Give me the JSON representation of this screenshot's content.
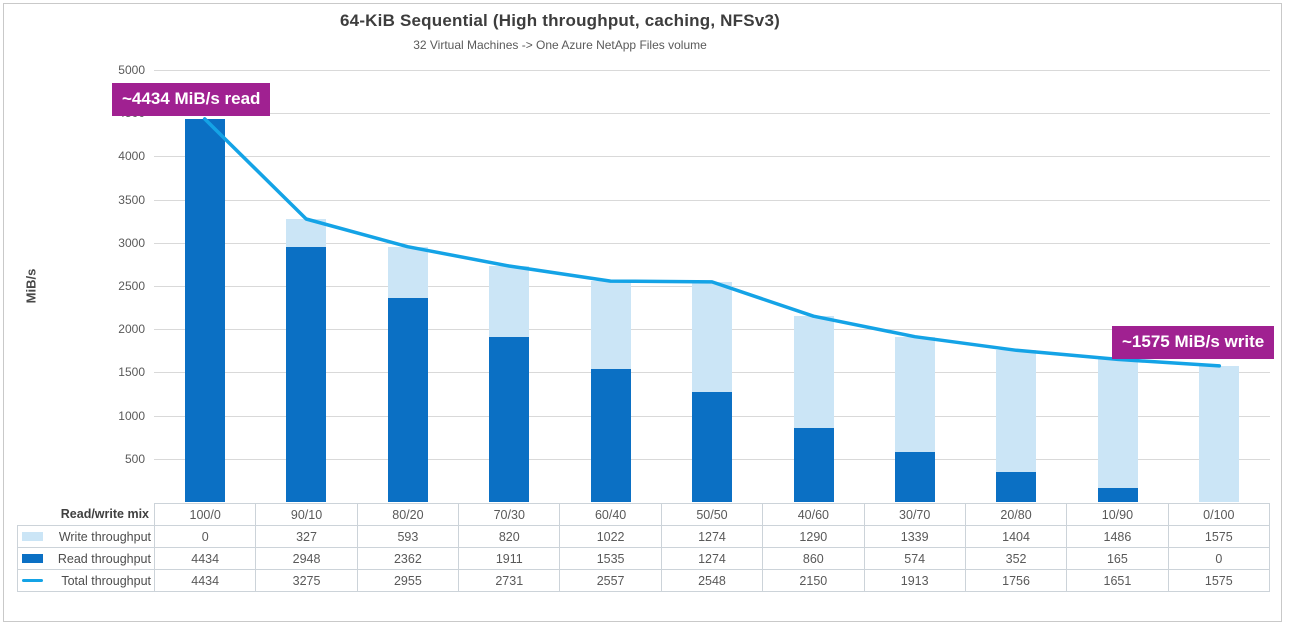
{
  "colors": {
    "read_bar": "#0b70c4",
    "write_bar": "#cbe5f6",
    "total_line": "#14a3e6",
    "callout_bg": "#a02191",
    "callout_text": "#ffffff",
    "gridline": "#d9d9d9",
    "axis_text": "#595959",
    "title_text": "#3d3d3d",
    "table_border": "#ccd3d9",
    "chart_border": "#c9c9c9"
  },
  "chart_data": {
    "type": "bar",
    "variant": "stacked-column-with-total-line",
    "title": "64-KiB Sequential (High throughput, caching, NFSv3)",
    "subtitle": "32 Virtual Machines -> One Azure NetApp Files volume",
    "ylabel": "MiB/s",
    "ylim": [
      0,
      5000
    ],
    "yticks": [
      500,
      1000,
      1500,
      2000,
      2500,
      3000,
      3500,
      4000,
      4500,
      5000
    ],
    "grid": "horizontal-only",
    "legend_position": "table-left-column",
    "categories_label": "Read/write mix",
    "categories": [
      "100/0",
      "90/10",
      "80/20",
      "70/30",
      "60/40",
      "50/50",
      "40/60",
      "30/70",
      "20/80",
      "10/90",
      "0/100"
    ],
    "series": [
      {
        "name": "Write throughput",
        "render": "bar-top-segment",
        "swatch": "fill",
        "color_key": "write_bar",
        "values": [
          0,
          327,
          593,
          820,
          1022,
          1274,
          1290,
          1339,
          1404,
          1486,
          1575
        ]
      },
      {
        "name": "Read throughput",
        "render": "bar-bottom-segment",
        "swatch": "fill",
        "color_key": "read_bar",
        "values": [
          4434,
          2948,
          2362,
          1911,
          1535,
          1274,
          860,
          574,
          352,
          165,
          0
        ]
      },
      {
        "name": "Total throughput",
        "render": "line",
        "swatch": "line",
        "color_key": "total_line",
        "values": [
          4434,
          3275,
          2955,
          2731,
          2557,
          2548,
          2150,
          1913,
          1756,
          1651,
          1575
        ]
      }
    ],
    "annotations": [
      {
        "text": "~4434 MiB/s read",
        "anchor": "first-point-top-left"
      },
      {
        "text": "~1575 MiB/s write",
        "anchor": "last-point-right"
      }
    ]
  }
}
